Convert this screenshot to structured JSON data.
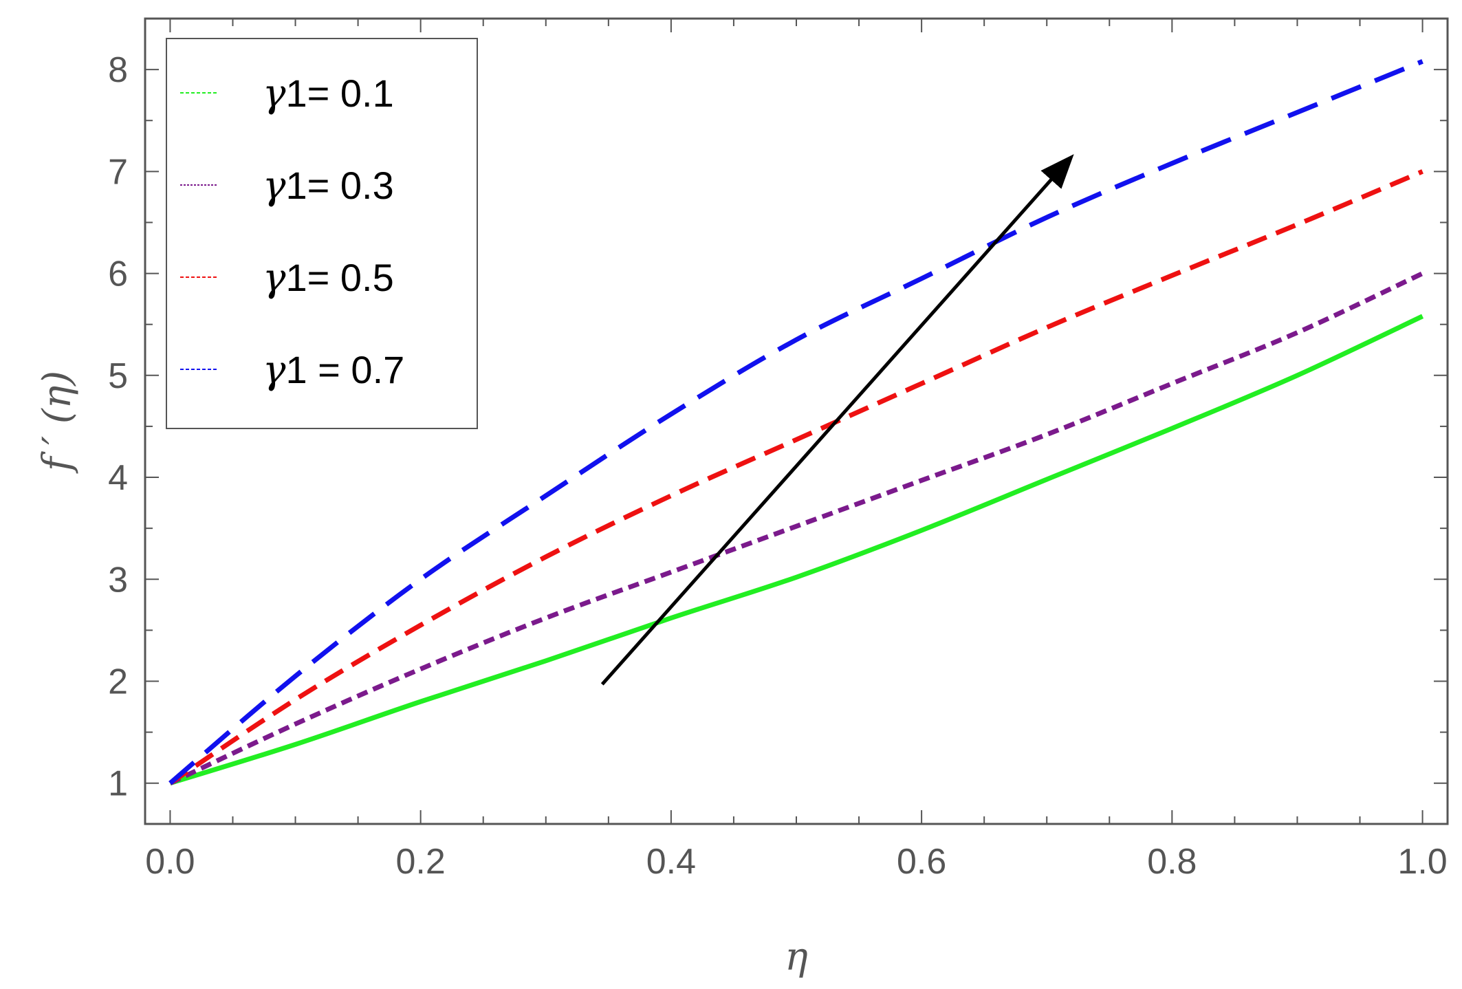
{
  "chart_data": {
    "type": "line",
    "title": "",
    "xlabel": "η",
    "ylabel": "f ′ (η)",
    "xlim": [
      -0.02,
      1.02
    ],
    "ylim": [
      0.6,
      8.5
    ],
    "x_ticks": [
      {
        "value": 0.0,
        "label": "0.0"
      },
      {
        "value": 0.2,
        "label": "0.2"
      },
      {
        "value": 0.4,
        "label": "0.4"
      },
      {
        "value": 0.6,
        "label": "0.6"
      },
      {
        "value": 0.8,
        "label": "0.8"
      },
      {
        "value": 1.0,
        "label": "1.0"
      }
    ],
    "y_ticks": [
      {
        "value": 1,
        "label": "1"
      },
      {
        "value": 2,
        "label": "2"
      },
      {
        "value": 3,
        "label": "3"
      },
      {
        "value": 4,
        "label": "4"
      },
      {
        "value": 5,
        "label": "5"
      },
      {
        "value": 6,
        "label": "6"
      },
      {
        "value": 7,
        "label": "7"
      },
      {
        "value": 8,
        "label": "8"
      }
    ],
    "grid": false,
    "legend_position": "top-left",
    "series": [
      {
        "name": "γ1= 0.1",
        "legend_symbol": "γ",
        "legend_text": "1= 0.1",
        "color": "#22ee22",
        "style": "solid",
        "x": [
          0.0,
          0.1,
          0.2,
          0.3,
          0.4,
          0.5,
          0.6,
          0.7,
          0.8,
          0.9,
          1.0
        ],
        "y": [
          1.0,
          1.38,
          1.8,
          2.2,
          2.62,
          3.02,
          3.48,
          3.98,
          4.48,
          5.0,
          5.58
        ]
      },
      {
        "name": "γ1= 0.3",
        "legend_symbol": "γ",
        "legend_text": "1= 0.3",
        "color": "#7b1a8c",
        "style": "short-dash",
        "x": [
          0.0,
          0.1,
          0.2,
          0.3,
          0.4,
          0.5,
          0.6,
          0.7,
          0.8,
          0.9,
          1.0
        ],
        "y": [
          1.0,
          1.58,
          2.12,
          2.62,
          3.07,
          3.52,
          3.97,
          4.42,
          4.92,
          5.42,
          6.0
        ]
      },
      {
        "name": "γ1= 0.5",
        "legend_symbol": "γ",
        "legend_text": "1= 0.5",
        "color": "#ee1111",
        "style": "dash",
        "x": [
          0.0,
          0.1,
          0.2,
          0.3,
          0.4,
          0.5,
          0.6,
          0.7,
          0.8,
          0.9,
          1.0
        ],
        "y": [
          1.0,
          1.82,
          2.55,
          3.22,
          3.82,
          4.37,
          4.92,
          5.47,
          5.98,
          6.48,
          7.0
        ]
      },
      {
        "name": "γ1 = 0.7",
        "legend_symbol": "γ",
        "legend_text": "1 = 0.7",
        "color": "#1111ee",
        "style": "long-dash",
        "x": [
          0.0,
          0.1,
          0.2,
          0.3,
          0.4,
          0.5,
          0.6,
          0.7,
          0.8,
          0.9,
          1.0
        ],
        "y": [
          1.0,
          2.05,
          3.0,
          3.82,
          4.62,
          5.35,
          5.95,
          6.55,
          7.08,
          7.58,
          8.08
        ]
      }
    ],
    "annotations": [
      {
        "type": "arrow",
        "from": [
          0.345,
          1.97
        ],
        "to": [
          0.718,
          7.12
        ],
        "color": "#000000"
      }
    ]
  }
}
